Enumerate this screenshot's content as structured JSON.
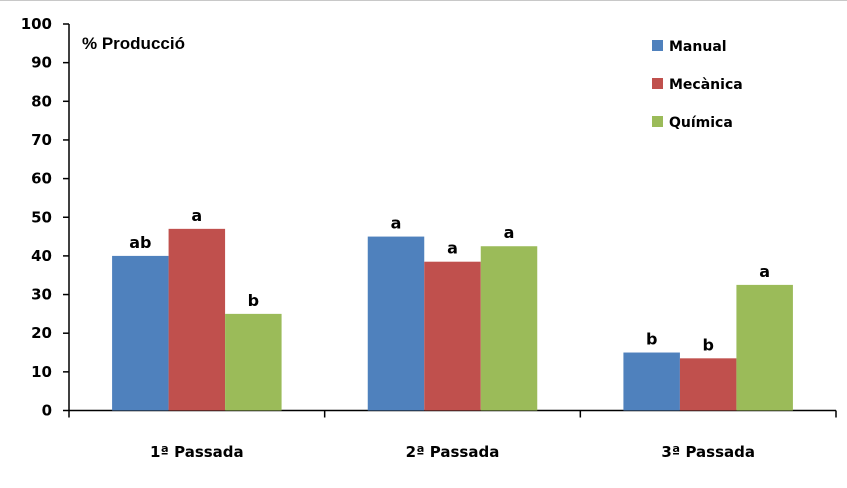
{
  "chart_data": {
    "type": "bar",
    "title": "% Producció",
    "xlabel": "",
    "ylabel": "",
    "ylim": [
      0,
      100
    ],
    "yticks": [
      0,
      10,
      20,
      30,
      40,
      50,
      60,
      70,
      80,
      90,
      100
    ],
    "categories": [
      "1ª Passada",
      "2ª Passada",
      "3ª Passada"
    ],
    "series": [
      {
        "name": "Manual",
        "color": "#4F81BD",
        "values": [
          40,
          45,
          15
        ],
        "labels": [
          "ab",
          "a",
          "b"
        ]
      },
      {
        "name": "Mecànica",
        "color": "#C0504D",
        "values": [
          47,
          38.5,
          13.5
        ],
        "labels": [
          "a",
          "a",
          "b"
        ]
      },
      {
        "name": "Química",
        "color": "#9BBB59",
        "values": [
          25,
          42.5,
          32.5
        ],
        "labels": [
          "b",
          "a",
          "a"
        ]
      }
    ],
    "legend_position": "top-right",
    "grid": false
  }
}
